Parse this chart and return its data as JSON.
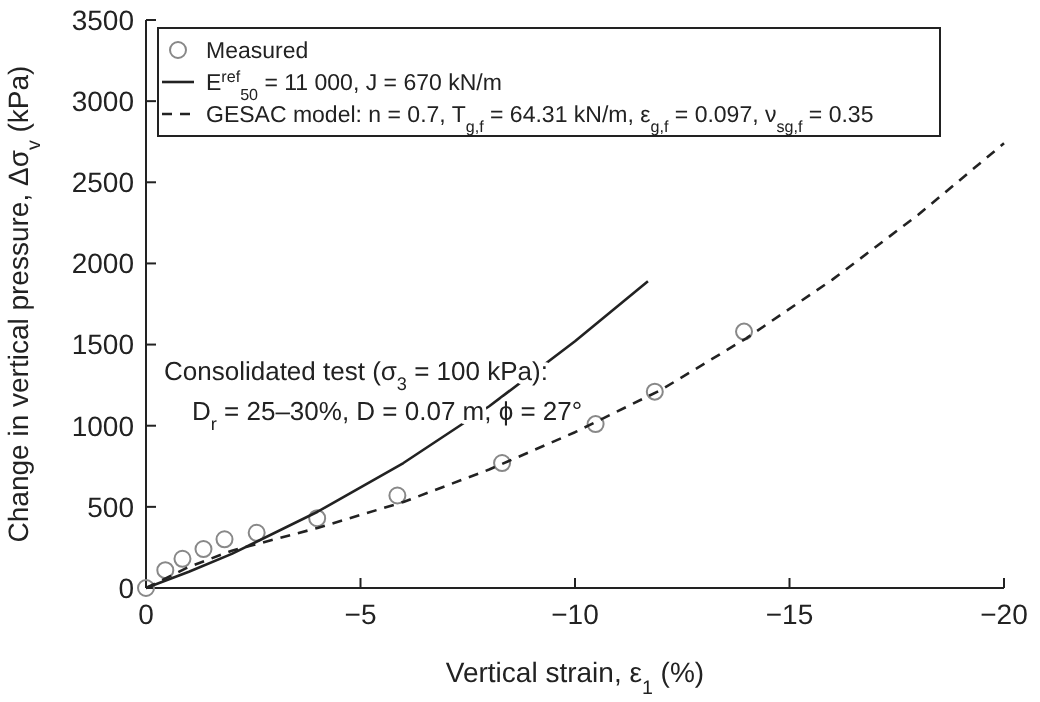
{
  "chart_data": {
    "type": "line",
    "xlabel": "Vertical strain, ε$_{1}$ (%)",
    "ylabel": "Change in vertical pressure, Δσ$_{v}$ (kPa)",
    "xlim": [
      0,
      -20
    ],
    "xticks": [
      0,
      {
        "value": -5,
        "label": "−5"
      },
      {
        "value": -10,
        "label": "−10"
      },
      {
        "value": -15,
        "label": "−15"
      },
      {
        "value": -20,
        "label": "−20"
      }
    ],
    "ylim": [
      0,
      3500
    ],
    "yticks": [
      0,
      500,
      1000,
      1500,
      2000,
      2500,
      3000,
      3500
    ],
    "grid": false,
    "legend": "top",
    "series": [
      {
        "name": "Measured",
        "type": "scatter",
        "marker": "circle",
        "color": "#888888",
        "x": [
          0,
          -0.45,
          -0.85,
          -1.34,
          -1.83,
          -2.58,
          -3.99,
          -5.86,
          -8.3,
          -10.48,
          -11.86,
          -13.94
        ],
        "values": [
          0,
          110,
          180,
          240,
          300,
          340,
          430,
          570,
          770,
          1010,
          1210,
          1580
        ]
      },
      {
        "name": "E$^{ref}$$_{50}$ = 11 000, J = 670 kN/m",
        "line_style": "solid",
        "color": "#222222",
        "x": [
          0,
          -1,
          -2,
          -4,
          -6,
          -8,
          -10,
          -11.7
        ],
        "values": [
          0,
          100,
          210,
          470,
          770,
          1120,
          1520,
          1890
        ]
      },
      {
        "name": "GESAC model: n = 0.7, T$_{g,f}$ = 64.31 kN/m, ε$_{g,f}$ = 0.097, ν$_{sg,f}$ = 0.35",
        "line_style": "dashed",
        "color": "#222222",
        "x": [
          0,
          -1,
          -2,
          -4,
          -6,
          -8,
          -10,
          -12,
          -14,
          -16,
          -18,
          -20
        ],
        "values": [
          0,
          130,
          230,
          370,
          530,
          730,
          960,
          1220,
          1540,
          1900,
          2300,
          2740
        ]
      }
    ],
    "annotations": [
      "Consolidated test (σ$_{3}$ = 100 kPa):",
      "D$_{r}$ = 25–30%, D = 0.07 m, ϕ = 27°"
    ]
  }
}
